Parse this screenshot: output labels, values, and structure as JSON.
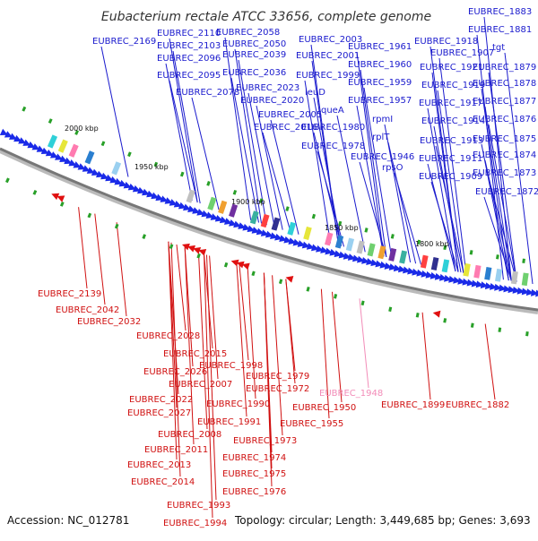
{
  "title": "Eubacterium rectale ATCC 33656, complete genome",
  "footer": {
    "accession": "Accession: NC_012781",
    "summary": "Topology: circular; Length: 3,449,685 bp; Genes: 3,693"
  },
  "scale_labels": [
    "2000 kbp",
    "1950 kbp",
    "1900 kbp",
    "1850 kbp",
    "1800 kbp"
  ],
  "colors": {
    "top_labels": "#1a1acd",
    "bottom_labels": "#d01010",
    "highlight_label": "#f28cb8",
    "forward_arrows": "#1a2ae8",
    "reverse_arrows": "#e01010",
    "backbone": "#777777"
  },
  "top_labels": [
    "EUBREC_2169",
    "EUBREC_2110",
    "EUBREC_2103",
    "EUBREC_2096",
    "EUBREC_2095",
    "EUBREC_2078",
    "EUBREC_2058",
    "EUBREC_2050",
    "EUBREC_2039",
    "EUBREC_2036",
    "EUBREC_2023",
    "EUBREC_2020",
    "leuD",
    "EUBREC_2005",
    "queA",
    "EUBREC_2016",
    "EUBREC_2003",
    "EUBREC_2001",
    "EUBREC_1999",
    "EUBREC_1980",
    "EUBREC_1978",
    "EUBREC_1961",
    "EUBREC_1960",
    "EUBREC_1959",
    "EUBREC_1957",
    "rpmI",
    "rplT",
    "EUBREC_1946",
    "rpsO",
    "EUBREC_1918",
    "EUBREC_1907",
    "EUBREC_1921",
    "EUBREC_1919",
    "EUBREC_1917",
    "EUBREC_1914",
    "EUBREC_1913",
    "EUBREC_1911",
    "EUBREC_1909",
    "EUBREC_1883",
    "EUBREC_1881",
    "tgt",
    "EUBREC_1879",
    "EUBREC_1878",
    "EUBREC_1877",
    "EUBREC_1876",
    "EUBREC_1875",
    "EUBREC_1874",
    "EUBREC_1873",
    "EUBREC_1872"
  ],
  "bottom_labels": [
    "EUBREC_2139",
    "EUBREC_2042",
    "EUBREC_2032",
    "EUBREC_2028",
    "EUBREC_2015",
    "EUBREC_2026",
    "EUBREC_1998",
    "EUBREC_2007",
    "EUBREC_2022",
    "EUBREC_2027",
    "EUBREC_1990",
    "EUBREC_1991",
    "EUBREC_2008",
    "EUBREC_2011",
    "EUBREC_2013",
    "EUBREC_2014",
    "EUBREC_1993",
    "EUBREC_1994",
    "EUBREC_1979",
    "EUBREC_1972",
    "EUBREC_1973",
    "EUBREC_1974",
    "EUBREC_1975",
    "EUBREC_1976",
    "EUBREC_1950",
    "EUBREC_1955",
    "EUBREC_1948",
    "EUBREC_1899",
    "EUBREC_1882"
  ]
}
